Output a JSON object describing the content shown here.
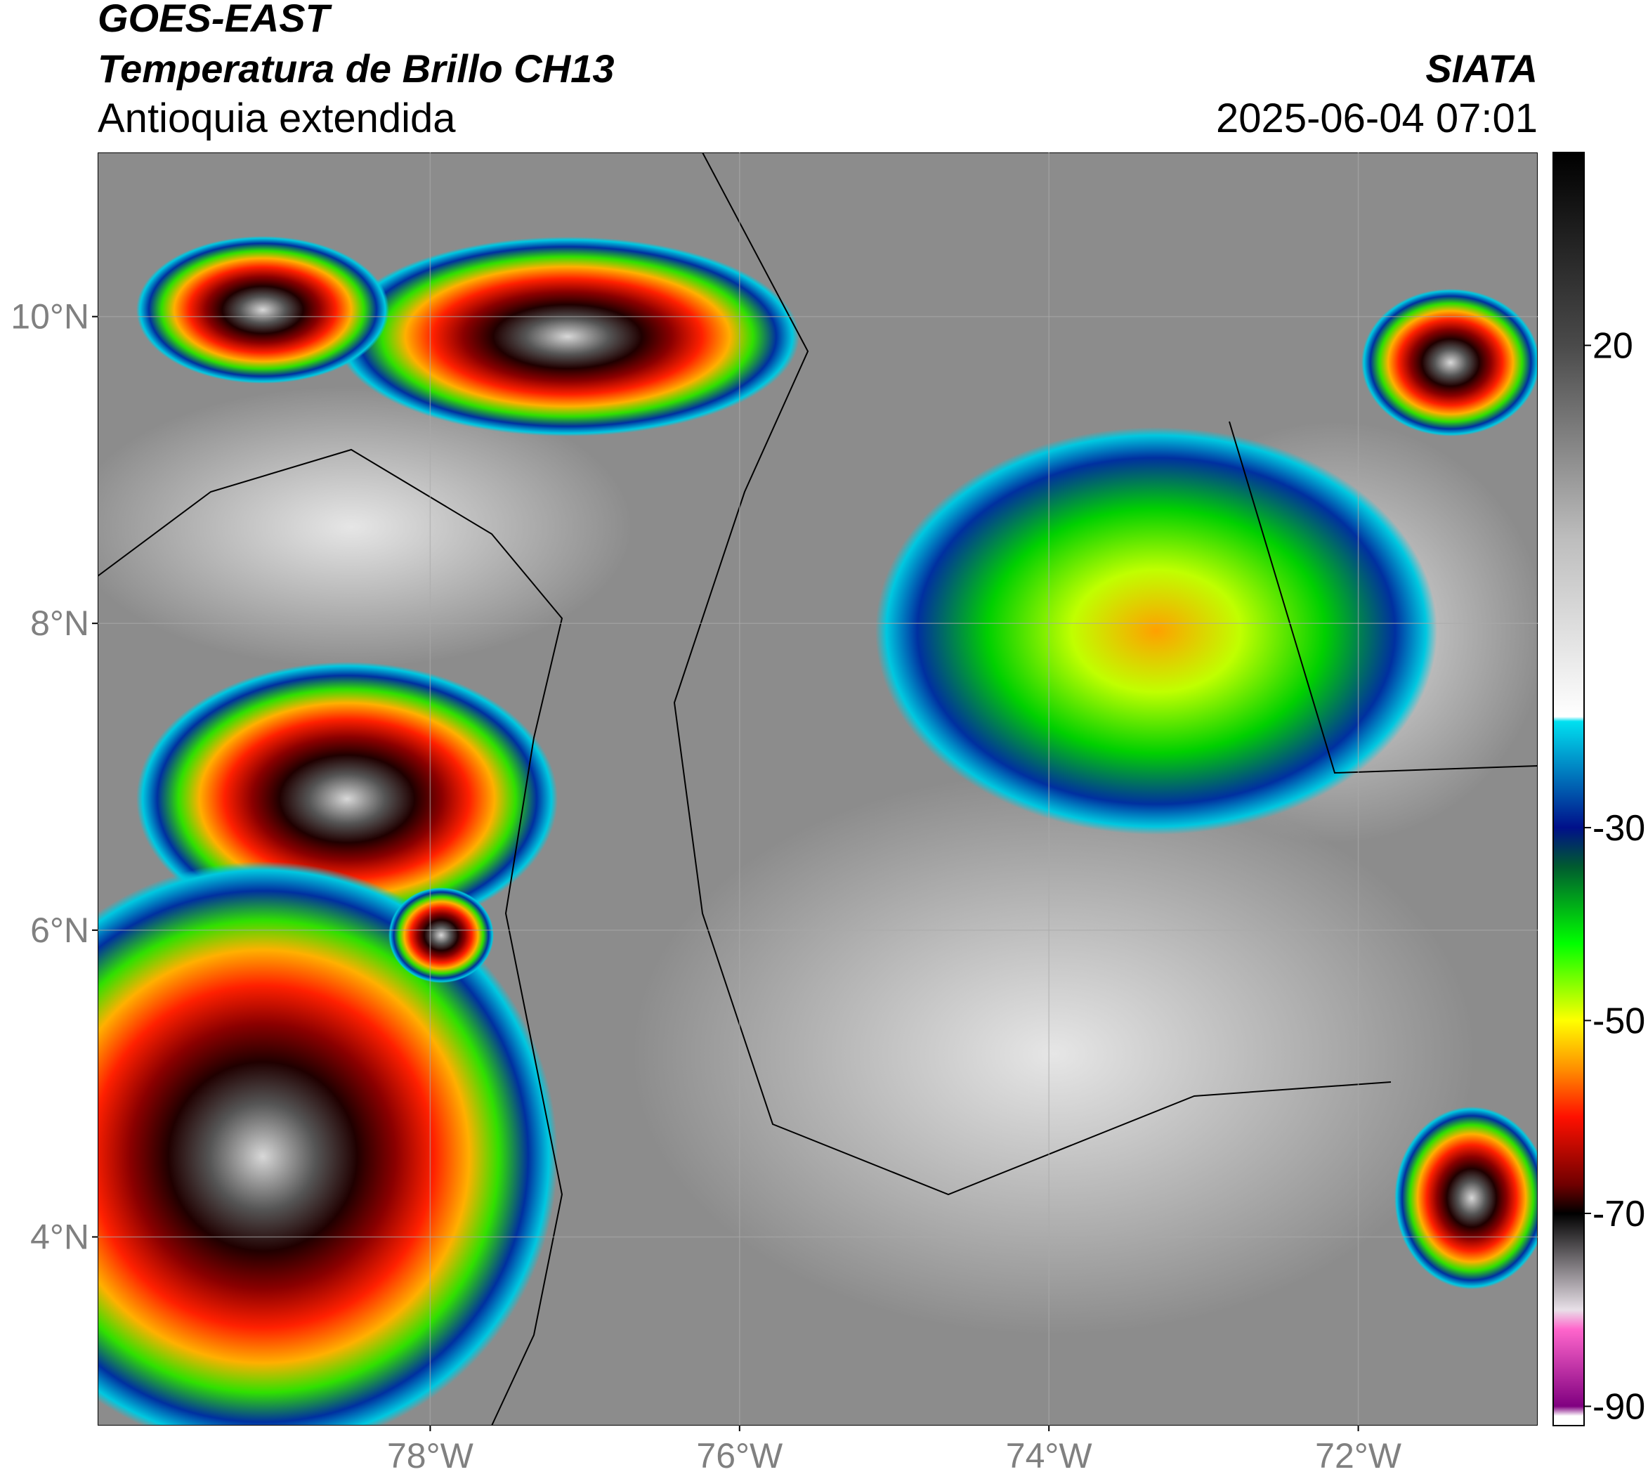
{
  "header": {
    "satellite": "GOES-EAST",
    "product": "Temperatura de Brillo CH13",
    "region": "Antioquia extendida",
    "agency": "SIATA",
    "datetime": "2025-06-04 07:01"
  },
  "map": {
    "lonlim": [
      -80.15,
      -70.84
    ],
    "latlim": [
      2.77,
      11.07
    ],
    "grid": true,
    "lat_ticks": [
      {
        "value": 10,
        "label": "10°N"
      },
      {
        "value": 8,
        "label": "8°N"
      },
      {
        "value": 6,
        "label": "6°N"
      },
      {
        "value": 4,
        "label": "4°N"
      }
    ],
    "lon_ticks": [
      {
        "value": -78,
        "label": "78°W"
      },
      {
        "value": -76,
        "label": "76°W"
      },
      {
        "value": -74,
        "label": "74°W"
      },
      {
        "value": -72,
        "label": "72°W"
      }
    ]
  },
  "colorbar": {
    "lim": [
      -92,
      40
    ],
    "ticks": [
      20,
      -30,
      -50,
      -70,
      -90
    ],
    "stops": [
      {
        "value": 40,
        "color": "#000000"
      },
      {
        "value": 20,
        "color": "#4a4a4a"
      },
      {
        "value": 0,
        "color": "#bdbdbd"
      },
      {
        "value": -18.5,
        "color": "#ffffff"
      },
      {
        "value": -19,
        "color": "#00e0f0"
      },
      {
        "value": -30,
        "color": "#00108a"
      },
      {
        "value": -34,
        "color": "#005a30"
      },
      {
        "value": -42,
        "color": "#00ff00"
      },
      {
        "value": -50,
        "color": "#ffff00"
      },
      {
        "value": -55,
        "color": "#ff9000"
      },
      {
        "value": -60,
        "color": "#ff1000"
      },
      {
        "value": -67,
        "color": "#700000"
      },
      {
        "value": -70,
        "color": "#000000"
      },
      {
        "value": -80,
        "color": "#e8e0e8"
      },
      {
        "value": -82,
        "color": "#ff66cc"
      },
      {
        "value": -90,
        "color": "#800080"
      },
      {
        "value": -91,
        "color": "#ffffff"
      }
    ]
  }
}
